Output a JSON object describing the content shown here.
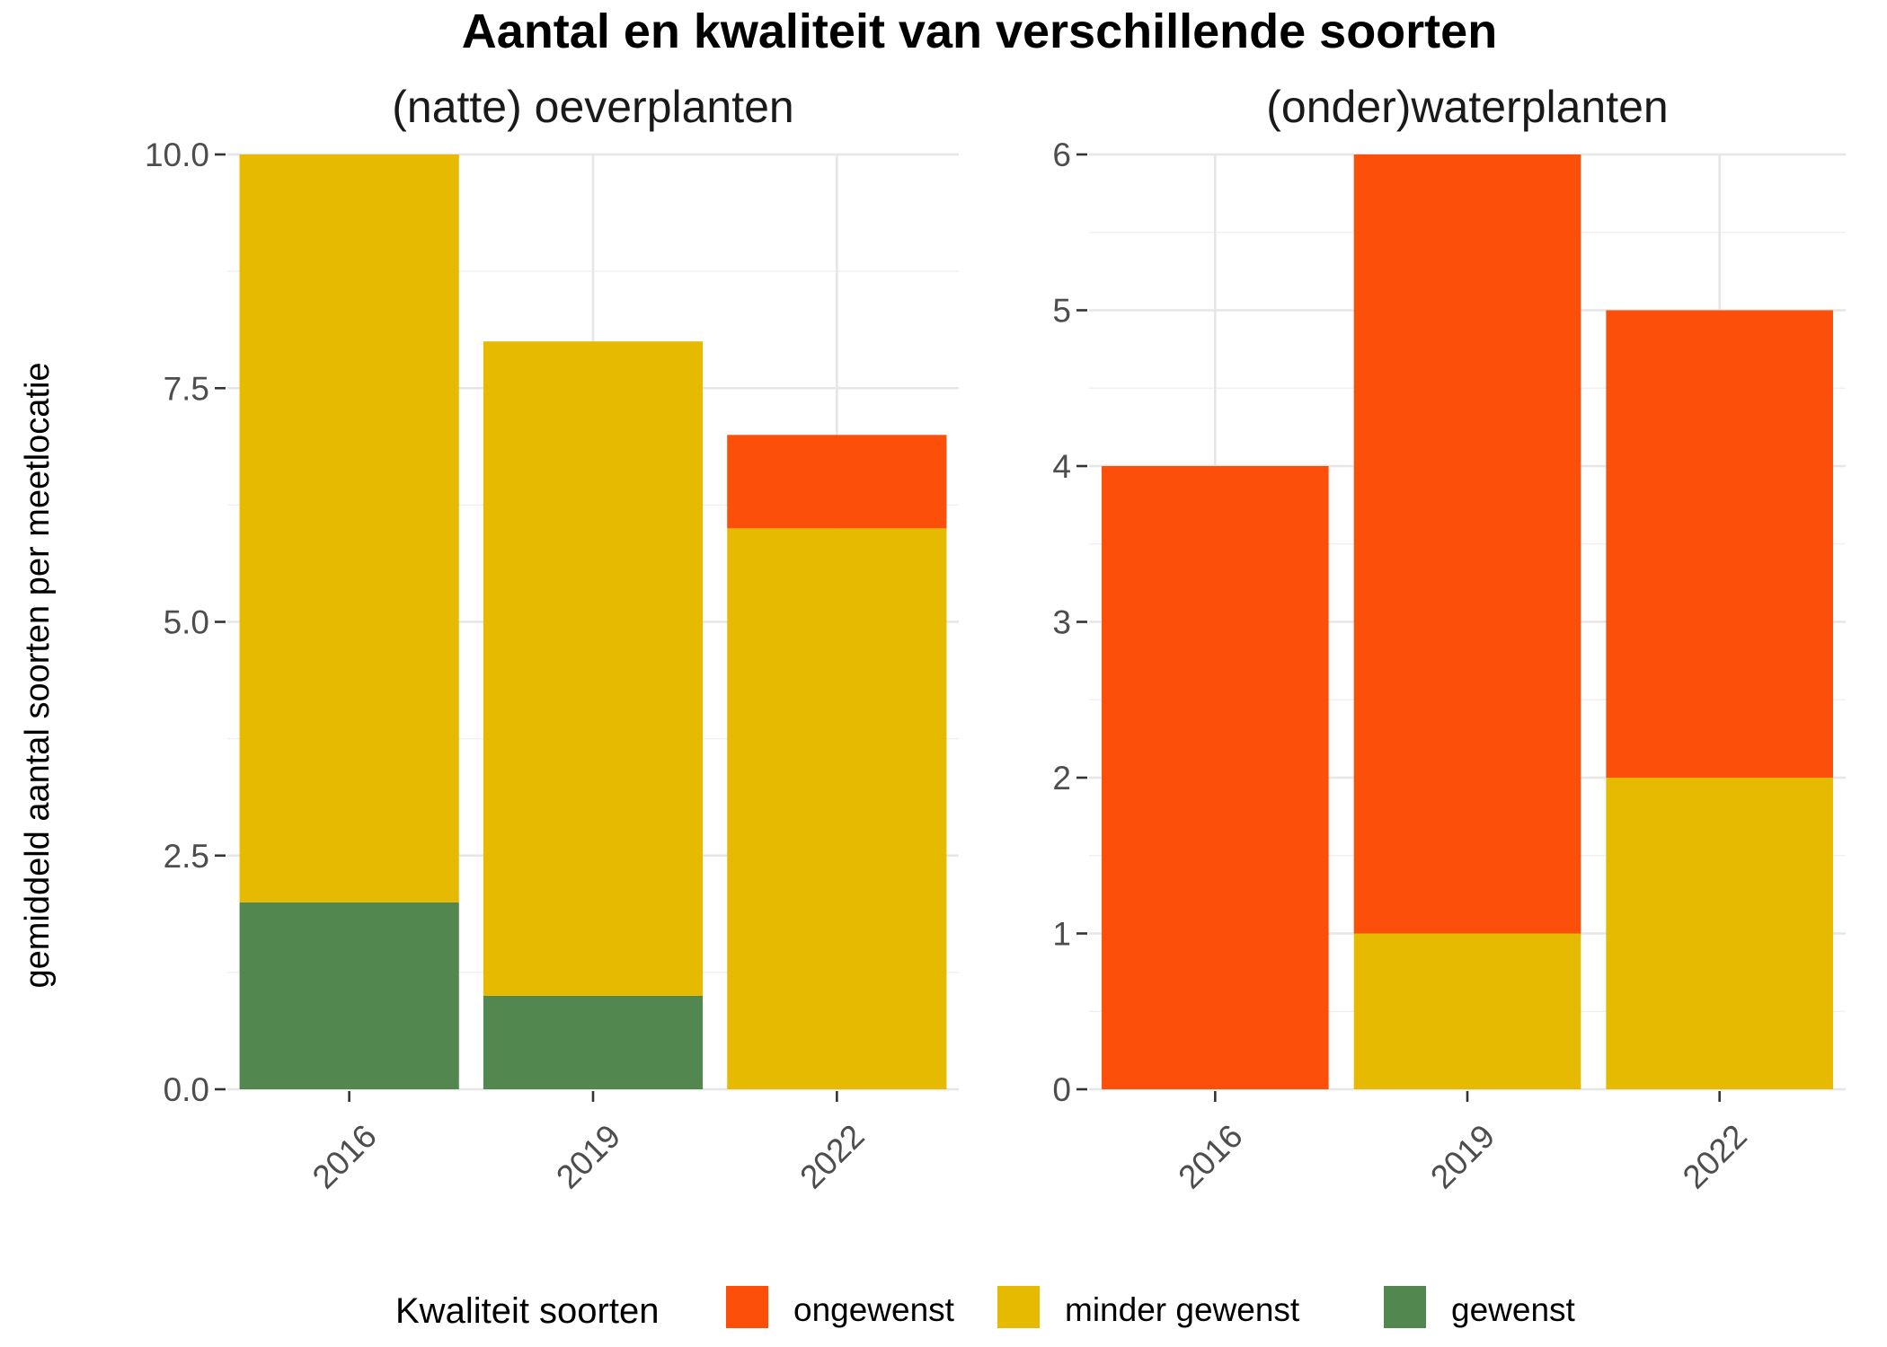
{
  "chart_data": {
    "type": "bar",
    "stacked": true,
    "title": "Aantal en kwaliteit van verschillende soorten",
    "ylabel": "gemiddeld aantal soorten per meetlocatie",
    "xlabel": "",
    "legend": {
      "title": "Kwaliteit soorten",
      "position": "bottom",
      "items": [
        {
          "name": "ongewenst",
          "color": "#FC4F0A"
        },
        {
          "name": "minder gewenst",
          "color": "#E5BA00"
        },
        {
          "name": "gewenst",
          "color": "#52874F"
        }
      ]
    },
    "grid": true,
    "panels": [
      {
        "title": "(natte) oeverplanten",
        "categories": [
          "2016",
          "2019",
          "2022"
        ],
        "ylim": [
          0,
          10
        ],
        "yticks": [
          "0.0",
          "2.5",
          "5.0",
          "7.5",
          "10.0"
        ],
        "ytick_values": [
          0,
          2.5,
          5,
          7.5,
          10
        ],
        "series": [
          {
            "name": "gewenst",
            "values": [
              2,
              1,
              0
            ]
          },
          {
            "name": "minder gewenst",
            "values": [
              8,
              7,
              6
            ]
          },
          {
            "name": "ongewenst",
            "values": [
              0,
              0,
              1
            ]
          }
        ]
      },
      {
        "title": "(onder)waterplanten",
        "categories": [
          "2016",
          "2019",
          "2022"
        ],
        "ylim": [
          0,
          6
        ],
        "yticks": [
          "0",
          "1",
          "2",
          "3",
          "4",
          "5",
          "6"
        ],
        "ytick_values": [
          0,
          1,
          2,
          3,
          4,
          5,
          6
        ],
        "series": [
          {
            "name": "gewenst",
            "values": [
              0,
              0,
              0
            ]
          },
          {
            "name": "minder gewenst",
            "values": [
              0,
              1,
              2
            ]
          },
          {
            "name": "ongewenst",
            "values": [
              4,
              5,
              3
            ]
          }
        ]
      }
    ]
  }
}
